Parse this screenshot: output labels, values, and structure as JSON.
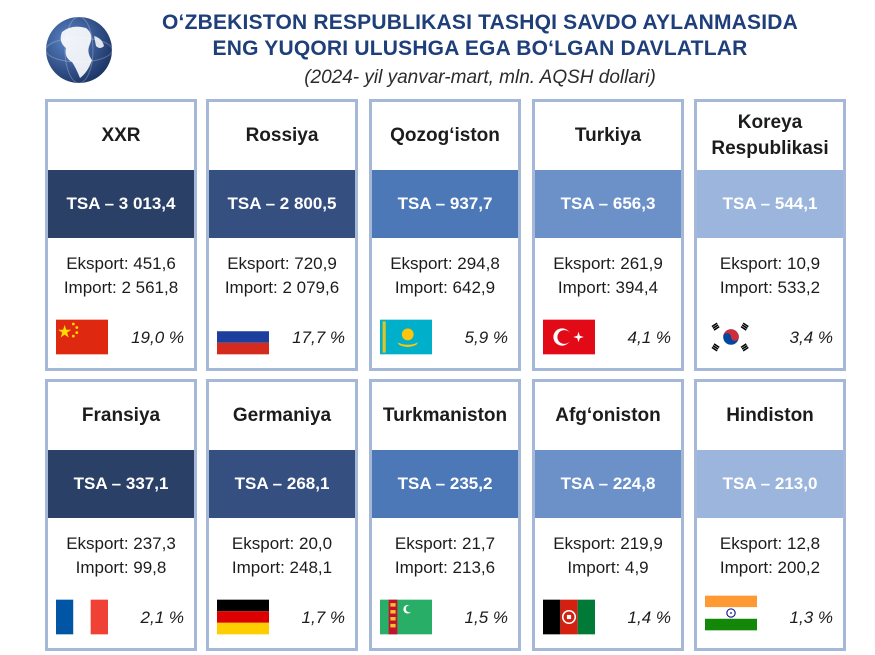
{
  "header": {
    "title_line1": "O‘ZBEKISTON RESPUBLIKASI TASHQI SAVDO AYLANMASIDA",
    "title_line2": "ENG YUQORI ULUSHGA EGA BO‘LGAN DAVLATLAR",
    "subtitle": "(2024- yil yanvar-mart, mln. AQSH dollari)",
    "logo_icon": "globe-icon"
  },
  "colors": {
    "card_border": "#a6b8d8",
    "tsa_bands": [
      "#2a4066",
      "#354f80",
      "#4c78b8",
      "#6b91c8",
      "#9cb5dc"
    ]
  },
  "countries": [
    {
      "name": "XXR",
      "tsa": "TSA – 3 013,4",
      "export": "Eksport: 451,6",
      "import": "Import: 2 561,8",
      "share": "19,0 %",
      "flag_icon": "china-flag-icon"
    },
    {
      "name": "Rossiya",
      "tsa": "TSA – 2 800,5",
      "export": "Eksport: 720,9",
      "import": "Import: 2 079,6",
      "share": "17,7 %",
      "flag_icon": "russia-flag-icon"
    },
    {
      "name": "Qozog‘iston",
      "tsa": "TSA – 937,7",
      "export": "Eksport: 294,8",
      "import": "Import: 642,9",
      "share": "5,9 %",
      "flag_icon": "kazakhstan-flag-icon"
    },
    {
      "name": "Turkiya",
      "tsa": "TSA – 656,3",
      "export": "Eksport: 261,9",
      "import": "Import: 394,4",
      "share": "4,1 %",
      "flag_icon": "turkey-flag-icon"
    },
    {
      "name": "Koreya Respublikasi",
      "tsa": "TSA – 544,1",
      "export": "Eksport: 10,9",
      "import": "Import: 533,2",
      "share": "3,4 %",
      "flag_icon": "south-korea-flag-icon"
    },
    {
      "name": "Fransiya",
      "tsa": "TSA – 337,1",
      "export": "Eksport: 237,3",
      "import": "Import: 99,8",
      "share": "2,1 %",
      "flag_icon": "france-flag-icon"
    },
    {
      "name": "Germaniya",
      "tsa": "TSA – 268,1",
      "export": "Eksport: 20,0",
      "import": "Import: 248,1",
      "share": "1,7 %",
      "flag_icon": "germany-flag-icon"
    },
    {
      "name": "Turkmaniston",
      "tsa": "TSA – 235,2",
      "export": "Eksport: 21,7",
      "import": "Import: 213,6",
      "share": "1,5 %",
      "flag_icon": "turkmenistan-flag-icon"
    },
    {
      "name": "Afg‘oniston",
      "tsa": "TSA – 224,8",
      "export": "Eksport: 219,9",
      "import": "Import: 4,9",
      "share": "1,4 %",
      "flag_icon": "afghanistan-flag-icon"
    },
    {
      "name": "Hindiston",
      "tsa": "TSA – 213,0",
      "export": "Eksport: 12,8",
      "import": "Import: 200,2",
      "share": "1,3 %",
      "flag_icon": "india-flag-icon"
    }
  ]
}
